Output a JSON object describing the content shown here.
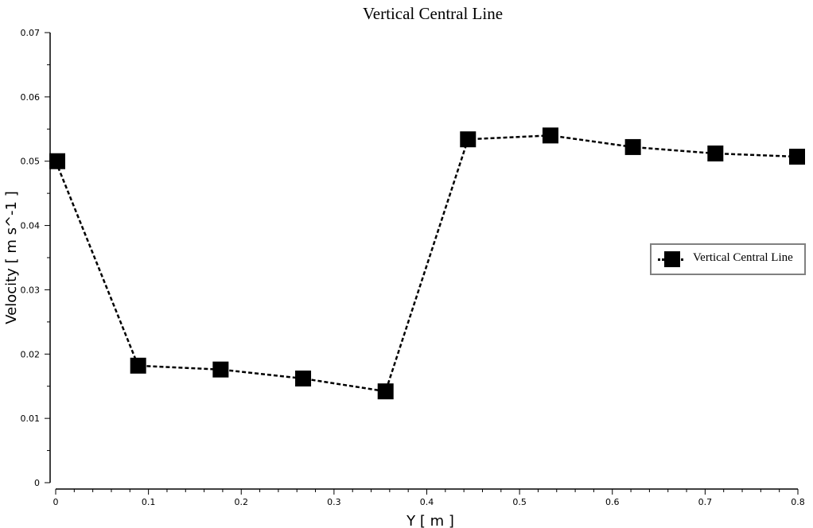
{
  "chart_data": {
    "type": "line",
    "title": "Vertical Central Line",
    "xlabel": "Y [ m ]",
    "ylabel": "Velocity [ m s^-1 ]",
    "xlim": [
      0,
      0.8
    ],
    "ylim": [
      0,
      0.07
    ],
    "xticks": [
      "0",
      "0.1",
      "0.2",
      "0.3",
      "0.4",
      "0.5",
      "0.6",
      "0.7",
      "0.8"
    ],
    "yticks": [
      "0",
      "0.01",
      "0.02",
      "0.03",
      "0.04",
      "0.05",
      "0.06",
      "0.07"
    ],
    "grid": false,
    "legend_position": "right",
    "series": [
      {
        "name": "Vertical Central Line",
        "color": "#000000",
        "line_style": "dashed",
        "marker": "square",
        "x": [
          0,
          0.0889,
          0.1778,
          0.2667,
          0.3556,
          0.4444,
          0.5333,
          0.6222,
          0.7111,
          0.8
        ],
        "y": [
          0.05,
          0.0182,
          0.0176,
          0.0162,
          0.0142,
          0.0534,
          0.054,
          0.0522,
          0.0512,
          0.0507
        ]
      }
    ]
  }
}
